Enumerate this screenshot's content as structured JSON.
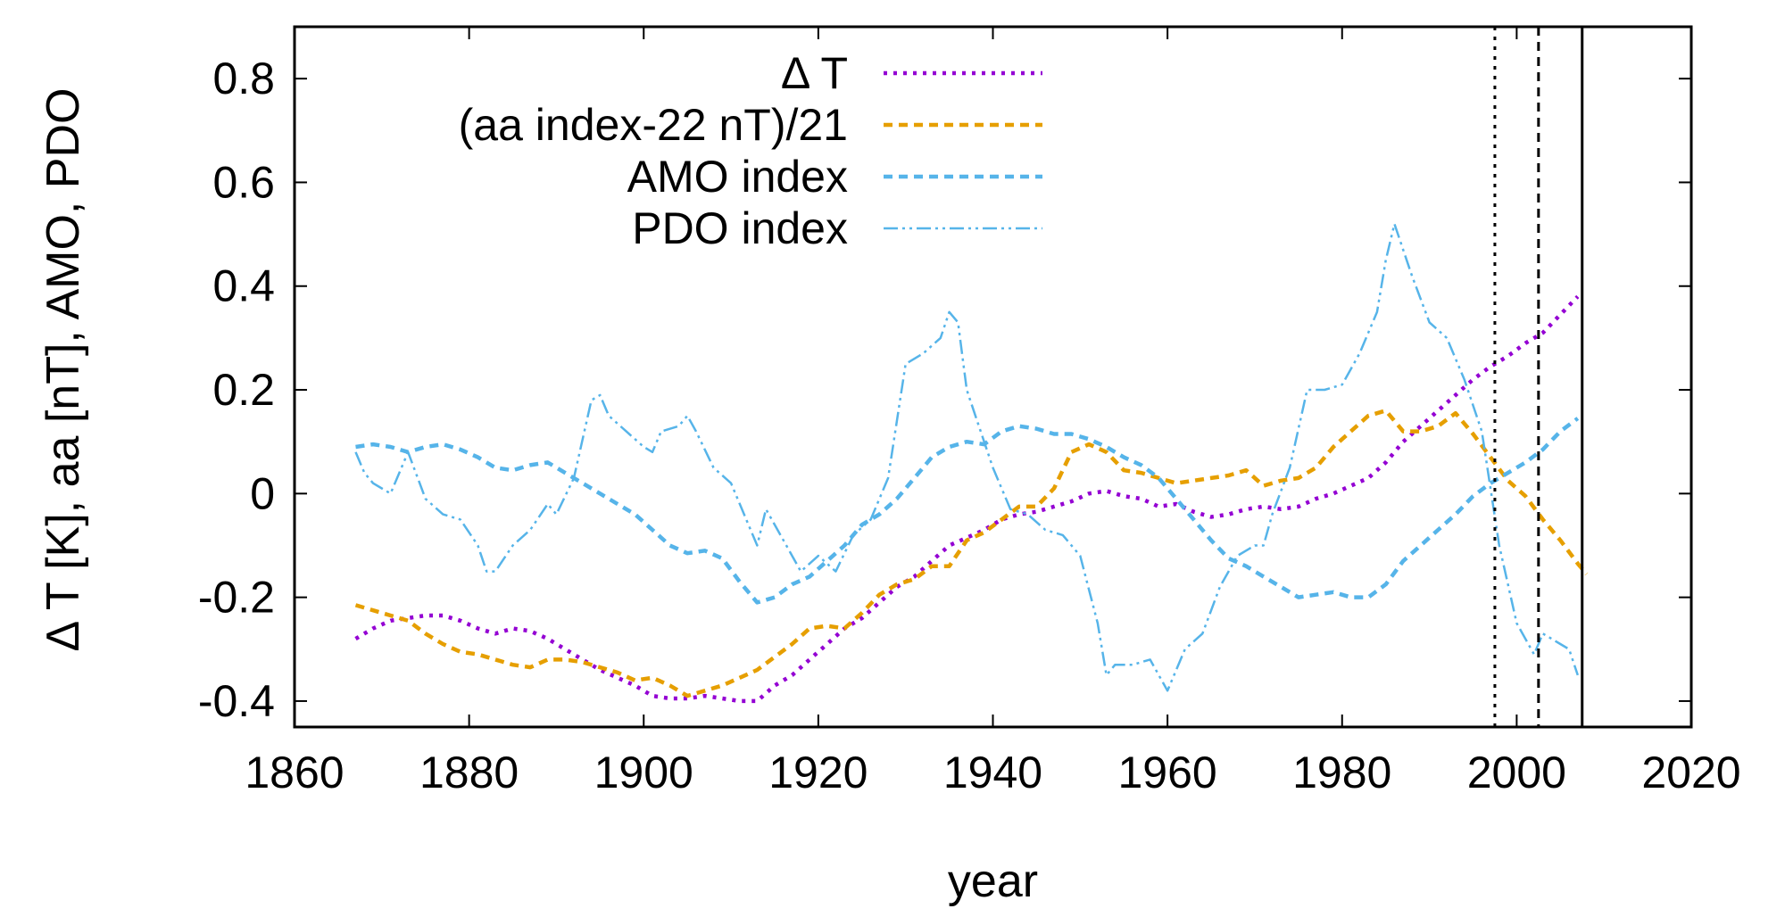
{
  "chart_data": {
    "type": "line",
    "xlabel": "year",
    "ylabel": "Δ T [K], aa [nT], AMO, PDO",
    "xlim": [
      1860,
      2020
    ],
    "ylim": [
      -0.45,
      0.9
    ],
    "x_ticks": [
      "1860",
      "1880",
      "1900",
      "1920",
      "1940",
      "1960",
      "1980",
      "2000",
      "2020"
    ],
    "y_ticks": [
      "-0.4",
      "-0.2",
      "0",
      "0.2",
      "0.4",
      "0.6",
      "0.8"
    ],
    "grid": false,
    "legend_position": "top-left",
    "vertical_lines": [
      {
        "x": 1997.5,
        "style": "dotted"
      },
      {
        "x": 2002.5,
        "style": "dashed"
      },
      {
        "x": 2007.5,
        "style": "solid"
      }
    ],
    "series": [
      {
        "name": "Δ T",
        "color": "#9400d3",
        "style": "dotted",
        "x": [
          1867,
          1869,
          1871,
          1873,
          1875,
          1877,
          1879,
          1881,
          1883,
          1885,
          1887,
          1889,
          1891,
          1893,
          1895,
          1897,
          1899,
          1901,
          1903,
          1905,
          1907,
          1909,
          1911,
          1913,
          1915,
          1917,
          1919,
          1921,
          1923,
          1925,
          1927,
          1929,
          1931,
          1933,
          1935,
          1937,
          1939,
          1941,
          1943,
          1945,
          1947,
          1949,
          1951,
          1953,
          1955,
          1957,
          1959,
          1961,
          1963,
          1965,
          1967,
          1969,
          1971,
          1973,
          1975,
          1977,
          1979,
          1981,
          1983,
          1985,
          1987,
          1989,
          1991,
          1993,
          1995,
          1997,
          1999,
          2001,
          2003,
          2005,
          2007
        ],
        "values": [
          -0.28,
          -0.26,
          -0.245,
          -0.24,
          -0.235,
          -0.235,
          -0.245,
          -0.26,
          -0.27,
          -0.26,
          -0.265,
          -0.28,
          -0.3,
          -0.32,
          -0.34,
          -0.355,
          -0.37,
          -0.39,
          -0.395,
          -0.395,
          -0.39,
          -0.395,
          -0.4,
          -0.4,
          -0.37,
          -0.35,
          -0.32,
          -0.29,
          -0.26,
          -0.24,
          -0.21,
          -0.18,
          -0.16,
          -0.13,
          -0.1,
          -0.085,
          -0.07,
          -0.05,
          -0.04,
          -0.035,
          -0.025,
          -0.015,
          0.0,
          0.005,
          -0.005,
          -0.01,
          -0.025,
          -0.02,
          -0.035,
          -0.045,
          -0.04,
          -0.03,
          -0.025,
          -0.03,
          -0.025,
          -0.01,
          0.0,
          0.015,
          0.03,
          0.06,
          0.1,
          0.13,
          0.16,
          0.19,
          0.22,
          0.245,
          0.265,
          0.29,
          0.31,
          0.345,
          0.38
        ]
      },
      {
        "name": "(aa index-22 nT)/21",
        "color": "#e69f00",
        "style": "dashed",
        "x": [
          1867,
          1869,
          1871,
          1873,
          1875,
          1877,
          1879,
          1881,
          1883,
          1885,
          1887,
          1889,
          1891,
          1893,
          1895,
          1897,
          1899,
          1901,
          1903,
          1905,
          1907,
          1909,
          1911,
          1913,
          1915,
          1917,
          1919,
          1921,
          1923,
          1925,
          1927,
          1929,
          1931,
          1933,
          1935,
          1937,
          1939,
          1941,
          1943,
          1945,
          1947,
          1949,
          1951,
          1953,
          1955,
          1957,
          1959,
          1961,
          1963,
          1965,
          1967,
          1969,
          1971,
          1973,
          1975,
          1977,
          1979,
          1981,
          1983,
          1985,
          1987,
          1989,
          1991,
          1993,
          1995,
          1997,
          1999,
          2001,
          2003,
          2005,
          2007,
          2008
        ],
        "values": [
          -0.215,
          -0.225,
          -0.235,
          -0.245,
          -0.27,
          -0.29,
          -0.305,
          -0.31,
          -0.32,
          -0.33,
          -0.335,
          -0.32,
          -0.32,
          -0.325,
          -0.335,
          -0.345,
          -0.36,
          -0.355,
          -0.37,
          -0.39,
          -0.38,
          -0.37,
          -0.355,
          -0.34,
          -0.315,
          -0.29,
          -0.26,
          -0.255,
          -0.26,
          -0.23,
          -0.195,
          -0.175,
          -0.165,
          -0.14,
          -0.14,
          -0.09,
          -0.075,
          -0.05,
          -0.025,
          -0.025,
          0.01,
          0.08,
          0.095,
          0.08,
          0.045,
          0.04,
          0.03,
          0.02,
          0.025,
          0.03,
          0.035,
          0.045,
          0.015,
          0.025,
          0.03,
          0.05,
          0.09,
          0.12,
          0.15,
          0.16,
          0.12,
          0.12,
          0.13,
          0.155,
          0.115,
          0.07,
          0.025,
          -0.005,
          -0.05,
          -0.09,
          -0.135,
          -0.155
        ]
      },
      {
        "name": "AMO index",
        "color": "#56b4e9",
        "style": "dashed",
        "x": [
          1867,
          1869,
          1871,
          1873,
          1875,
          1877,
          1879,
          1881,
          1883,
          1885,
          1887,
          1889,
          1891,
          1893,
          1895,
          1897,
          1899,
          1901,
          1903,
          1905,
          1907,
          1909,
          1911,
          1913,
          1915,
          1917,
          1919,
          1921,
          1923,
          1925,
          1927,
          1929,
          1931,
          1933,
          1935,
          1937,
          1939,
          1941,
          1943,
          1945,
          1947,
          1949,
          1951,
          1953,
          1955,
          1957,
          1959,
          1961,
          1963,
          1965,
          1967,
          1969,
          1971,
          1973,
          1975,
          1977,
          1979,
          1981,
          1983,
          1985,
          1987,
          1989,
          1991,
          1993,
          1995,
          1997,
          1999,
          2001,
          2003,
          2005,
          2007
        ],
        "values": [
          0.09,
          0.095,
          0.09,
          0.08,
          0.09,
          0.095,
          0.085,
          0.07,
          0.05,
          0.045,
          0.055,
          0.06,
          0.04,
          0.02,
          0.0,
          -0.02,
          -0.04,
          -0.07,
          -0.1,
          -0.115,
          -0.11,
          -0.125,
          -0.17,
          -0.21,
          -0.2,
          -0.175,
          -0.16,
          -0.13,
          -0.1,
          -0.06,
          -0.04,
          -0.01,
          0.03,
          0.07,
          0.09,
          0.1,
          0.095,
          0.12,
          0.13,
          0.125,
          0.115,
          0.115,
          0.105,
          0.09,
          0.07,
          0.055,
          0.03,
          -0.01,
          -0.05,
          -0.09,
          -0.125,
          -0.14,
          -0.16,
          -0.18,
          -0.2,
          -0.195,
          -0.19,
          -0.2,
          -0.2,
          -0.175,
          -0.13,
          -0.1,
          -0.07,
          -0.04,
          -0.005,
          0.02,
          0.04,
          0.06,
          0.085,
          0.12,
          0.145
        ]
      },
      {
        "name": "PDO index",
        "color": "#56b4e9",
        "style": "dashdot",
        "x": [
          1867,
          1868,
          1869,
          1871,
          1873,
          1875,
          1877,
          1879,
          1881,
          1882,
          1883,
          1885,
          1887,
          1889,
          1890,
          1892,
          1894,
          1895,
          1896,
          1898,
          1900,
          1901,
          1902,
          1904,
          1905,
          1906,
          1908,
          1910,
          1912,
          1913,
          1914,
          1916,
          1918,
          1920,
          1922,
          1924,
          1926,
          1928,
          1930,
          1932,
          1934,
          1935,
          1936,
          1937,
          1938,
          1940,
          1942,
          1944,
          1946,
          1948,
          1950,
          1952,
          1953,
          1954,
          1956,
          1958,
          1960,
          1962,
          1964,
          1966,
          1968,
          1970,
          1971,
          1972,
          1974,
          1976,
          1978,
          1980,
          1982,
          1984,
          1985,
          1986,
          1988,
          1990,
          1992,
          1994,
          1996,
          1998,
          2000,
          2002,
          2003,
          2004,
          2005,
          2006,
          2007
        ],
        "values": [
          0.08,
          0.04,
          0.02,
          0.0,
          0.08,
          -0.01,
          -0.04,
          -0.05,
          -0.1,
          -0.15,
          -0.15,
          -0.1,
          -0.07,
          -0.02,
          -0.04,
          0.03,
          0.18,
          0.19,
          0.15,
          0.12,
          0.09,
          0.08,
          0.12,
          0.13,
          0.15,
          0.12,
          0.05,
          0.02,
          -0.06,
          -0.1,
          -0.03,
          -0.09,
          -0.15,
          -0.12,
          -0.15,
          -0.08,
          -0.05,
          0.03,
          0.25,
          0.27,
          0.3,
          0.35,
          0.33,
          0.2,
          0.15,
          0.05,
          -0.03,
          -0.04,
          -0.07,
          -0.08,
          -0.12,
          -0.25,
          -0.35,
          -0.33,
          -0.33,
          -0.32,
          -0.38,
          -0.3,
          -0.27,
          -0.18,
          -0.12,
          -0.1,
          -0.1,
          -0.04,
          0.05,
          0.2,
          0.2,
          0.21,
          0.27,
          0.35,
          0.45,
          0.52,
          0.42,
          0.33,
          0.3,
          0.22,
          0.12,
          -0.1,
          -0.25,
          -0.31,
          -0.27,
          -0.28,
          -0.29,
          -0.3,
          -0.35
        ]
      }
    ]
  }
}
